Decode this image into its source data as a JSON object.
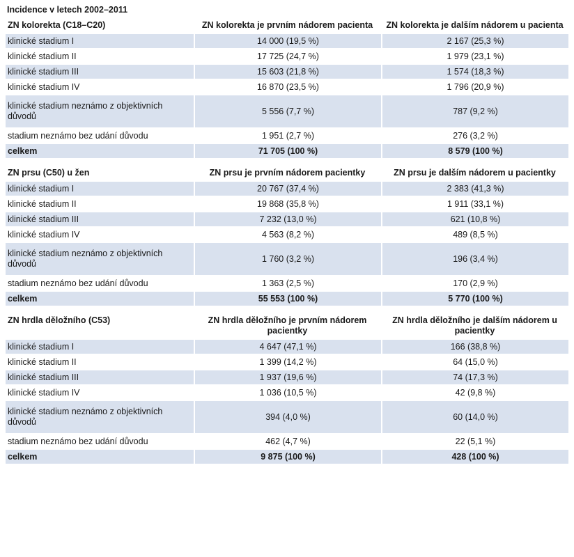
{
  "caption": "Incidence v letech 2002–2011",
  "sections": [
    {
      "title": "ZN kolorekta (C18–C20)",
      "col1": "ZN kolorekta je prvním nádorem pacienta",
      "col2": "ZN kolorekta je dalším nádorem u pacienta",
      "rows": [
        {
          "label": "klinické stadium I",
          "v1": "14 000 (19,5 %)",
          "v2": "2 167 (25,3 %)"
        },
        {
          "label": "klinické stadium II",
          "v1": "17 725 (24,7 %)",
          "v2": "1 979 (23,1 %)"
        },
        {
          "label": "klinické stadium III",
          "v1": "15 603 (21,8 %)",
          "v2": "1 574 (18,3 %)"
        },
        {
          "label": "klinické stadium IV",
          "v1": "16 870 (23,5 %)",
          "v2": "1 796 (20,9 %)"
        },
        {
          "label": "klinické stadium neznámo z objektivních důvodů",
          "v1": "5 556 (7,7 %)",
          "v2": "787 (9,2 %)"
        },
        {
          "label": "stadium neznámo bez udání důvodu",
          "v1": "1 951 (2,7 %)",
          "v2": "276 (3,2 %)"
        },
        {
          "label": "celkem",
          "v1": "71 705 (100 %)",
          "v2": "8 579 (100 %)"
        }
      ]
    },
    {
      "title": "ZN prsu (C50) u žen",
      "col1": "ZN prsu je prvním nádorem pacientky",
      "col2": "ZN prsu je dalším nádorem u pacientky",
      "rows": [
        {
          "label": "klinické stadium I",
          "v1": "20 767 (37,4 %)",
          "v2": "2 383 (41,3 %)"
        },
        {
          "label": "klinické stadium II",
          "v1": "19 868 (35,8 %)",
          "v2": "1 911 (33,1 %)"
        },
        {
          "label": "klinické stadium III",
          "v1": "7 232 (13,0 %)",
          "v2": "621 (10,8 %)"
        },
        {
          "label": "klinické stadium IV",
          "v1": "4 563 (8,2 %)",
          "v2": "489 (8,5 %)"
        },
        {
          "label": "klinické stadium neznámo z objektivních důvodů",
          "v1": "1 760 (3,2 %)",
          "v2": "196 (3,4 %)"
        },
        {
          "label": "stadium neznámo bez udání důvodu",
          "v1": "1 363 (2,5 %)",
          "v2": "170 (2,9 %)"
        },
        {
          "label": "celkem",
          "v1": "55 553 (100 %)",
          "v2": "5 770 (100 %)"
        }
      ]
    },
    {
      "title": "ZN hrdla děložního (C53)",
      "col1": "ZN hrdla děložního je prvním nádorem pacientky",
      "col2": "ZN hrdla děložního je dalším nádorem u pacientky",
      "rows": [
        {
          "label": "klinické stadium I",
          "v1": "4 647 (47,1 %)",
          "v2": "166 (38,8 %)"
        },
        {
          "label": "klinické stadium II",
          "v1": "1 399 (14,2 %)",
          "v2": "64 (15,0 %)"
        },
        {
          "label": "klinické stadium III",
          "v1": "1 937 (19,6 %)",
          "v2": "74 (17,3 %)"
        },
        {
          "label": "klinické stadium IV",
          "v1": "1 036 (10,5 %)",
          "v2": "42 (9,8 %)"
        },
        {
          "label": "klinické stadium neznámo z objektivních důvodů",
          "v1": "394 (4,0 %)",
          "v2": "60 (14,0 %)"
        },
        {
          "label": "stadium neznámo bez udání důvodu",
          "v1": "462 (4,7 %)",
          "v2": "22 (5,1 %)"
        },
        {
          "label": "celkem",
          "v1": "9 875 (100 %)",
          "v2": "428 (100 %)"
        }
      ]
    }
  ]
}
